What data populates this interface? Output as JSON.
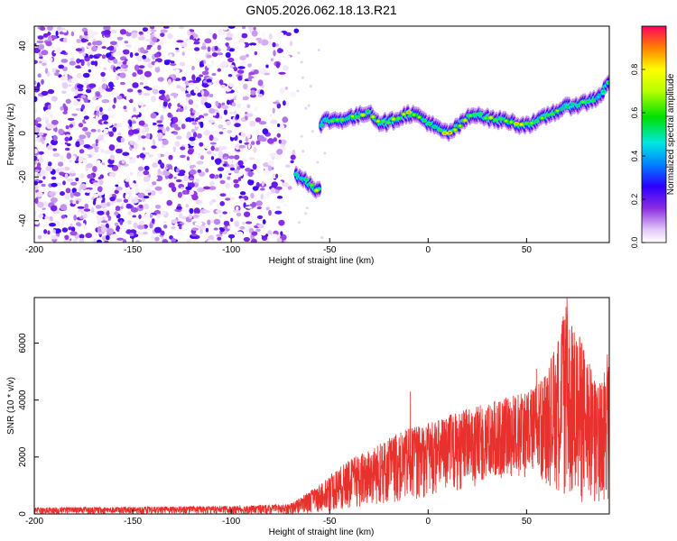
{
  "title": "GN05.2026.062.18.13.R21",
  "chart_data": [
    {
      "type": "heatmap",
      "title": "GN05.2026.062.18.13.R21",
      "xlabel": "Height of straight line (km)",
      "ylabel": "Frequency (Hz)",
      "xlim": [
        -200,
        92
      ],
      "ylim": [
        -50,
        49
      ],
      "xticks": [
        -200,
        -150,
        -100,
        -50,
        0,
        50
      ],
      "yticks": [
        -40,
        -20,
        0,
        20,
        40
      ],
      "colorbar": {
        "label": "Normalized spectral amplitude",
        "range": [
          0,
          1
        ],
        "ticks": [
          "0.0",
          "0.2",
          "0.4",
          "0.6",
          "0.8"
        ],
        "tick_values": [
          0.0,
          0.2,
          0.4,
          0.6,
          0.8
        ]
      },
      "noise_region": {
        "x_from": -200,
        "x_to": -70,
        "amplitude_range": [
          0.0,
          0.25
        ]
      },
      "signal_track": {
        "x": [
          -67,
          -63,
          -59,
          -56,
          -54,
          -52,
          -45,
          -40,
          -35,
          -30,
          -25,
          -20,
          -15,
          -10,
          -5,
          0,
          5,
          10,
          15,
          20,
          25,
          30,
          35,
          40,
          45,
          50,
          55,
          60,
          65,
          70,
          75,
          80,
          85,
          88,
          92
        ],
        "y": [
          -19,
          -21,
          -24,
          -26,
          4,
          6,
          6,
          7,
          8,
          10,
          5,
          5,
          7,
          9,
          8,
          5,
          2,
          0,
          3,
          7,
          9,
          7,
          6,
          6,
          4,
          4,
          5,
          8,
          10,
          12,
          13,
          14,
          16,
          18,
          24
        ],
        "peak_amplitude": [
          0.55,
          0.7,
          0.75,
          0.8,
          0.5,
          0.6,
          0.65,
          0.7,
          0.8,
          0.75,
          0.8,
          0.7,
          0.8,
          0.85,
          0.8,
          0.7,
          0.75,
          0.9,
          0.8,
          0.75,
          0.8,
          0.8,
          0.75,
          0.7,
          0.85,
          0.8,
          0.75,
          0.8,
          0.75,
          0.6,
          0.6,
          0.7,
          0.6,
          0.55,
          0.6
        ]
      }
    },
    {
      "type": "line",
      "xlabel": "Height of straight line (km)",
      "ylabel": "SNR (10 * v/v)",
      "xlim": [
        -200,
        92
      ],
      "ylim": [
        0,
        7600
      ],
      "xticks": [
        -200,
        -150,
        -100,
        -50,
        0,
        50
      ],
      "yticks": [
        0,
        2000,
        4000,
        6000
      ],
      "color": "#e8302c",
      "envelope": {
        "x": [
          -200,
          -150,
          -100,
          -70,
          -58,
          -50,
          -40,
          -30,
          -20,
          -10,
          0,
          10,
          20,
          30,
          40,
          50,
          60,
          65,
          70,
          75,
          80,
          85,
          92
        ],
        "lo": [
          0,
          0,
          0,
          0,
          30,
          100,
          150,
          250,
          350,
          450,
          600,
          700,
          900,
          1100,
          1300,
          1200,
          1000,
          800,
          400,
          300,
          250,
          250,
          250
        ],
        "hi": [
          230,
          250,
          280,
          350,
          900,
          1400,
          1900,
          2300,
          2700,
          3000,
          3200,
          3500,
          3700,
          3900,
          4100,
          4300,
          4900,
          6100,
          7300,
          6500,
          5800,
          4600,
          5500
        ]
      },
      "peaks": [
        {
          "x": -9,
          "y": 4300
        },
        {
          "x": 55,
          "y": 5100
        },
        {
          "x": 69,
          "y": 6800
        },
        {
          "x": 70.5,
          "y": 7600
        },
        {
          "x": 73,
          "y": 6600
        },
        {
          "x": 77,
          "y": 6200
        },
        {
          "x": 91,
          "y": 5600
        }
      ]
    }
  ]
}
